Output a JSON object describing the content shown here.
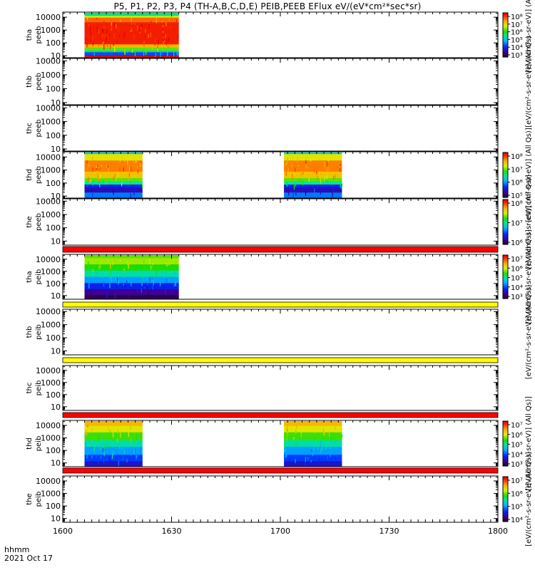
{
  "chart_data": {
    "type": "heatmap",
    "title": "P5, P1, P2, P3, P4 (TH-A,B,C,D,E) PEIB,PEEB EFlux eV/(eV*cm²*sec*sr)",
    "x_axis": {
      "range": [
        "1600",
        "1800"
      ],
      "tick_labels": [
        "1600",
        "1630",
        "1700",
        "1730",
        "1800"
      ],
      "time_label": "hhmm",
      "date_label": "2021 Oct 17"
    },
    "y_axis": {
      "scale": "log",
      "tick_labels": [
        "10",
        "100",
        "1000",
        "10000"
      ]
    },
    "colorbar_label_short": "[eV/(cm²-s-sr-eV)] (All Qs)",
    "colorbar_label_long": "[eV/(cm²-s-sr-eV)] (All Qs)]",
    "panels": [
      {
        "ylabel": [
          "tha",
          "peeb"
        ],
        "ylim": [
          7,
          25000
        ],
        "colorbar": {
          "ticks": [
            "10⁸",
            "10⁷",
            "10⁶",
            "10⁵",
            "10⁴",
            "10³"
          ]
        },
        "colorbar_label": "[eV/(cm²-s-sr-eV)] (Al",
        "data_intervals": [
          {
            "start": "1606",
            "end": "1632",
            "profile": "tha_peeb"
          }
        ]
      },
      {
        "ylabel": [
          "thb",
          "peeb"
        ],
        "ylim": [
          7,
          15000
        ],
        "colorbar_label": "[eV/(cm²-s-sr-eV)] (All Qs)",
        "data_intervals": []
      },
      {
        "ylabel": [
          "thc",
          "peeb"
        ],
        "ylim": [
          7,
          15000
        ],
        "data_intervals": []
      },
      {
        "ylabel": [
          "thd",
          "peeb"
        ],
        "ylim": [
          7,
          25000
        ],
        "colorbar": {
          "ticks": [
            "10⁸",
            "10⁷",
            "10⁶",
            "10⁵"
          ]
        },
        "colorbar_label": "[eV/(cm²-s-sr-eV)] (All Qs)]",
        "data_intervals": [
          {
            "start": "1606",
            "end": "1622",
            "profile": "thd_peeb"
          },
          {
            "start": "1701",
            "end": "1717",
            "profile": "thd_peeb"
          }
        ]
      },
      {
        "ylabel": [
          "the",
          "peeb"
        ],
        "ylim": [
          5,
          15000
        ],
        "colorbar": {
          "ticks": [
            "10⁸",
            "10⁷",
            "10⁶"
          ]
        },
        "colorbar_label": "[eV/(cm²-s-sr-eV)] (All Qs)]",
        "data_intervals": []
      },
      {
        "ylabel": [
          "tha",
          "peib"
        ],
        "ylim": [
          5,
          25000
        ],
        "colorbar": {
          "ticks": [
            "10⁷",
            "10⁶",
            "10⁵",
            "10⁴",
            "10³"
          ]
        },
        "colorbar_label": "[eV/(cm²-s-sr-eV)] (All Qs)]",
        "data_intervals": [
          {
            "start": "1606",
            "end": "1632",
            "profile": "tha_peib"
          }
        ]
      },
      {
        "ylabel": [
          "thb",
          "peib"
        ],
        "ylim": [
          5,
          15000
        ],
        "colorbar_label": "[eV/(cm²-s-sr-eV)] (All Qs)]",
        "data_intervals": []
      },
      {
        "ylabel": [
          "thc",
          "peib"
        ],
        "ylim": [
          5,
          25000
        ],
        "data_intervals": []
      },
      {
        "ylabel": [
          "thd",
          "peib"
        ],
        "ylim": [
          5,
          25000
        ],
        "colorbar": {
          "ticks": [
            "10⁷",
            "10⁶",
            "10⁵",
            "10⁴",
            "10³"
          ]
        },
        "colorbar_label": "[eV/(cm²-s-sr-eV)] (All Qs)]",
        "data_intervals": [
          {
            "start": "1606",
            "end": "1622",
            "profile": "thd_peib"
          },
          {
            "start": "1701",
            "end": "1717",
            "profile": "thd_peib"
          }
        ]
      },
      {
        "ylabel": [
          "the",
          "peib"
        ],
        "ylim": [
          5,
          25000
        ],
        "colorbar": {
          "ticks": [
            "10⁷",
            "10⁶",
            "10⁵",
            "10⁴"
          ]
        },
        "colorbar_label": "[eV/(cm²-s-sr-eV)] (All Qs)]",
        "data_intervals": []
      }
    ],
    "separator_bands": [
      {
        "after_panel": 5,
        "color": "#ff0000"
      },
      {
        "after_panel": 6,
        "color": "#ffff00"
      },
      {
        "after_panel": 7,
        "color": "#ffff00"
      },
      {
        "after_panel": 8,
        "color": "#ff0000"
      },
      {
        "after_panel": 9,
        "color": "#ff0000"
      }
    ]
  }
}
